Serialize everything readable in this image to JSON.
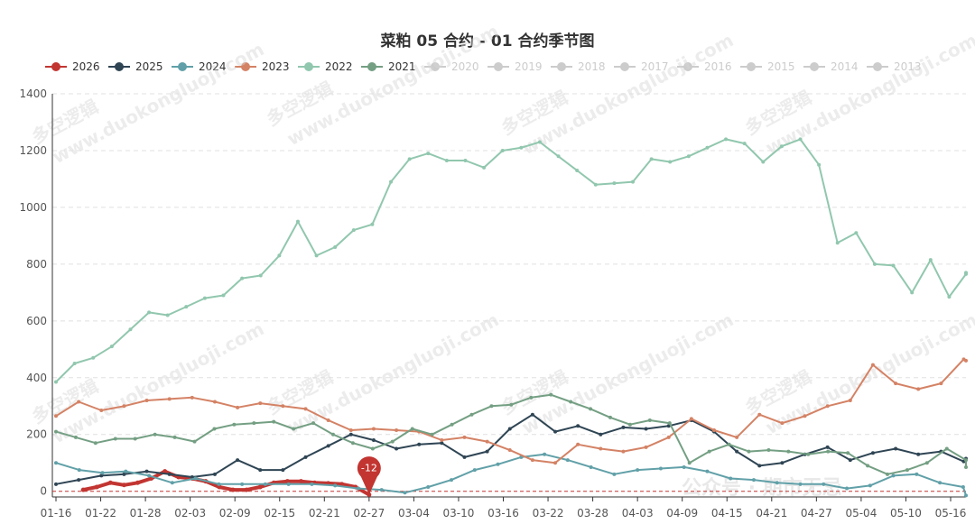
{
  "chart_data": {
    "type": "line",
    "title": "菜粕 05 合约 - 01 合约季节图",
    "xlabel": "",
    "ylabel": "",
    "ylim": [
      0,
      1400
    ],
    "yticks": [
      0,
      200,
      400,
      600,
      800,
      1000,
      1200,
      1400
    ],
    "xticks": [
      "01-16",
      "01-22",
      "01-28",
      "02-03",
      "02-09",
      "02-15",
      "02-21",
      "02-27",
      "03-04",
      "03-10",
      "03-16",
      "03-22",
      "03-28",
      "04-03",
      "04-09",
      "04-15",
      "04-21",
      "04-27",
      "05-04",
      "05-10",
      "05-16"
    ],
    "grid": "horizontal dashed",
    "legend_position": "top",
    "series": [
      {
        "name": "2026",
        "color": "#c23531",
        "visible": true,
        "width": 4,
        "values": [
          null,
          null,
          5,
          15,
          30,
          22,
          30,
          45,
          70,
          50,
          45,
          35,
          15,
          5,
          5,
          15,
          30,
          35,
          35,
          30,
          28,
          25,
          15,
          -12
        ]
      },
      {
        "name": "2025",
        "color": "#2f4554",
        "visible": true,
        "width": 2,
        "values": [
          25,
          40,
          55,
          60,
          70,
          60,
          50,
          60,
          110,
          75,
          75,
          120,
          160,
          200,
          180,
          150,
          165,
          170,
          120,
          140,
          220,
          270,
          210,
          230,
          200,
          225,
          220,
          230,
          250,
          210,
          140,
          90,
          100,
          130,
          155,
          110,
          135,
          150,
          130,
          140,
          105,
          115
        ]
      },
      {
        "name": "2024",
        "color": "#61a0a8",
        "visible": true,
        "width": 2,
        "values": [
          100,
          75,
          65,
          70,
          55,
          30,
          45,
          25,
          25,
          25,
          25,
          25,
          20,
          10,
          5,
          -5,
          15,
          40,
          75,
          95,
          120,
          130,
          110,
          85,
          60,
          75,
          80,
          85,
          70,
          45,
          40,
          30,
          25,
          25,
          10,
          20,
          55,
          60,
          30,
          15,
          -15
        ]
      },
      {
        "name": "2023",
        "color": "#d48265",
        "visible": true,
        "width": 2,
        "values": [
          265,
          315,
          285,
          300,
          320,
          325,
          330,
          315,
          295,
          310,
          300,
          290,
          250,
          215,
          220,
          215,
          210,
          180,
          190,
          175,
          145,
          110,
          100,
          165,
          150,
          140,
          155,
          190,
          255,
          215,
          190,
          270,
          240,
          265,
          300,
          320,
          445,
          380,
          360,
          380,
          465,
          460
        ]
      },
      {
        "name": "2022",
        "color": "#91c7ae",
        "visible": true,
        "width": 2,
        "values": [
          385,
          450,
          470,
          510,
          570,
          630,
          620,
          650,
          680,
          690,
          750,
          760,
          830,
          950,
          830,
          860,
          920,
          940,
          1090,
          1170,
          1190,
          1165,
          1165,
          1140,
          1200,
          1210,
          1230,
          1180,
          1130,
          1080,
          1085,
          1090,
          1170,
          1160,
          1180,
          1210,
          1240,
          1225,
          1160,
          1215,
          1240,
          1150,
          875,
          910,
          800,
          795,
          700,
          815,
          685,
          765,
          770
        ]
      },
      {
        "name": "2021",
        "color": "#749f83",
        "visible": true,
        "width": 2,
        "values": [
          210,
          190,
          170,
          185,
          185,
          200,
          190,
          175,
          220,
          235,
          240,
          245,
          220,
          240,
          200,
          170,
          150,
          175,
          220,
          200,
          235,
          270,
          300,
          305,
          330,
          340,
          315,
          290,
          260,
          235,
          250,
          240,
          100,
          140,
          165,
          140,
          145,
          140,
          130,
          140,
          135,
          90,
          60,
          75,
          100,
          150,
          110,
          85
        ]
      },
      {
        "name": "2020",
        "color": "#cccccc",
        "visible": false,
        "values": []
      },
      {
        "name": "2019",
        "color": "#cccccc",
        "visible": false,
        "values": []
      },
      {
        "name": "2018",
        "color": "#cccccc",
        "visible": false,
        "values": []
      },
      {
        "name": "2017",
        "color": "#cccccc",
        "visible": false,
        "values": []
      },
      {
        "name": "2016",
        "color": "#cccccc",
        "visible": false,
        "values": []
      },
      {
        "name": "2015",
        "color": "#cccccc",
        "visible": false,
        "values": []
      },
      {
        "name": "2014",
        "color": "#cccccc",
        "visible": false,
        "values": []
      },
      {
        "name": "2013",
        "color": "#cccccc",
        "visible": false,
        "values": []
      }
    ],
    "annotations": [
      {
        "series": "2026",
        "x": "02-27",
        "value": -12,
        "label": "-12"
      }
    ],
    "reference_line": {
      "value": 0,
      "style": "dashed",
      "color": "#c23531"
    }
  },
  "watermarks": {
    "brand": "多空逻辑",
    "url": "www.duokongluoji.com",
    "wechat": "公众号 · 期市无忌"
  }
}
